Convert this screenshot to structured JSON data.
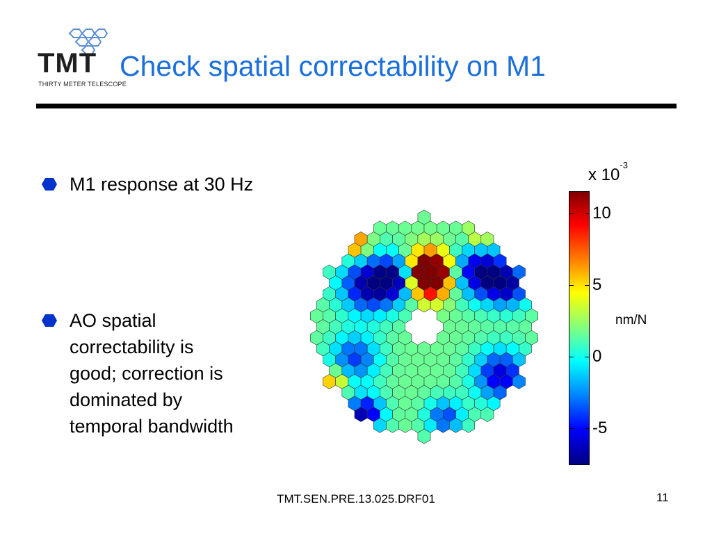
{
  "logo": {
    "mark": "TMT",
    "subtitle": "THIRTY METER TELESCOPE"
  },
  "title": "Check spatial correctability on M1",
  "bullets": [
    {
      "lines": [
        "M1 response at 30 Hz"
      ]
    },
    {
      "lines": [
        "AO spatial",
        "correctability is",
        "good; correction is",
        "dominated by",
        "temporal bandwidth"
      ]
    }
  ],
  "colorbar": {
    "scale_base": "x 10",
    "scale_exponent": "-3",
    "ticks": [
      "10",
      "5",
      "0",
      "-5"
    ],
    "tick_values": [
      10,
      5,
      0,
      -5
    ],
    "range": [
      -7.5,
      11.5
    ],
    "unit": "nm/N"
  },
  "footer": "TMT.SEN.PRE.13.025.DRF01",
  "page_number": "11",
  "colors": {
    "title": "#1a6fdb",
    "bullet": "#0033cc",
    "rule": "#000000"
  }
}
